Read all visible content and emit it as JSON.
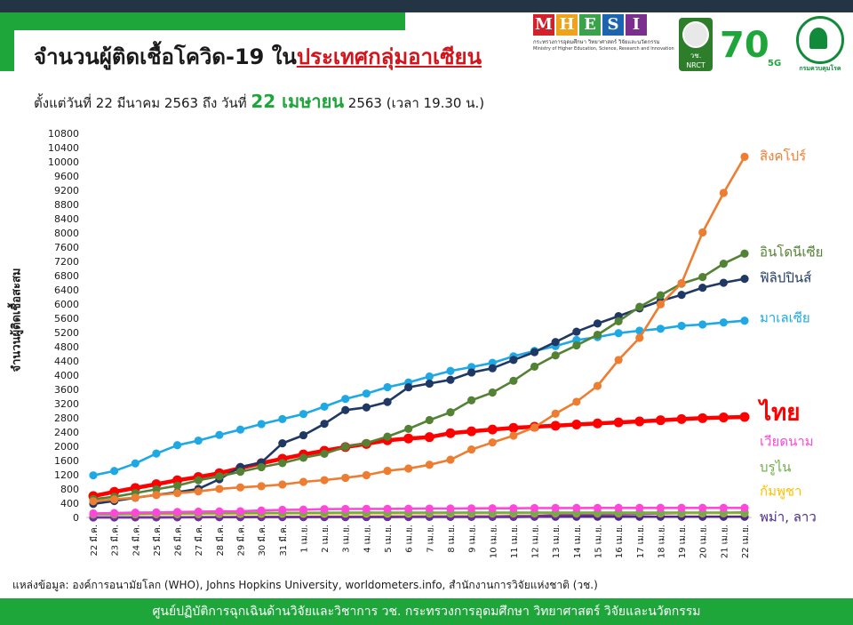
{
  "header": {
    "title_main": "จำนวนผู้ติดเชื้อโควิด-19 ใน",
    "title_highlight": "ประเทศกลุ่มอาเซียน",
    "subtitle_prefix": "ตั้งแต่วันที่ 22 มีนาคม 2563 ถึง วันที่",
    "subtitle_date": "22 เมษายน",
    "subtitle_suffix": "2563 (เวลา 19.30 น.)"
  },
  "logos": {
    "mhesi_letters": [
      "M",
      "H",
      "E",
      "S",
      "I"
    ],
    "mhesi_colors": [
      "#d4202a",
      "#f0a21b",
      "#3aa24a",
      "#1d64b0",
      "#7a2f8f"
    ],
    "mhesi_line1": "กระทรวงการอุดมศึกษา วิทยาศาสตร์ วิจัยและนวัตกรรม",
    "mhesi_line2": "Ministry of Higher Education, Science, Research and Innovation",
    "nrct_thai": "วช.",
    "nrct_en": "NRCT",
    "seventy": "70",
    "seventy_tag": "5G",
    "ddc_caption": "กรมควบคุมโรค"
  },
  "source": "แหล่งข้อมูล: องค์การอนามัยโลก (WHO), Johns Hopkins University, worldometers.info, สำนักงานการวิจัยแห่งชาติ (วช.)",
  "footer": "ศูนย์ปฏิบัติการฉุกเฉินด้านวิจัยและวิชาการ   วช.   กระทรวงการอุดมศึกษา วิทยาศาสตร์ วิจัยและนวัตกรรม",
  "chart_data": {
    "type": "line",
    "ylabel": "จำนวนผู้ติดเชื้อสะสม",
    "ylim": [
      0,
      10800
    ],
    "yticks": [
      0,
      400,
      800,
      1200,
      1600,
      2000,
      2400,
      2800,
      3200,
      3600,
      4000,
      4400,
      4800,
      5200,
      5600,
      6000,
      6400,
      6800,
      7200,
      7600,
      8000,
      8400,
      8800,
      9200,
      9600,
      10000,
      10400,
      10800
    ],
    "grid": false,
    "legend": "right end labels",
    "categories": [
      "22 มี.ค.",
      "23 มี.ค.",
      "24 มี.ค.",
      "25 มี.ค.",
      "26 มี.ค.",
      "27 มี.ค.",
      "28 มี.ค.",
      "29 มี.ค.",
      "30 มี.ค.",
      "31 มี.ค.",
      "1 เม.ย.",
      "2 เม.ย.",
      "3 เม.ย.",
      "4 เม.ย.",
      "5 เม.ย.",
      "6 เม.ย.",
      "7 เม.ย.",
      "8 เม.ย.",
      "9 เม.ย.",
      "10 เม.ย.",
      "11 เม.ย.",
      "12 เม.ย.",
      "13 เม.ย.",
      "14 เม.ย.",
      "15 เม.ย.",
      "16 เม.ย.",
      "17 เม.ย.",
      "18 เม.ย.",
      "19 เม.ย.",
      "20 เม.ย.",
      "21 เม.ย.",
      "22 เม.ย."
    ],
    "series": [
      {
        "name": "สิงคโปร์",
        "color": "#ed7d31",
        "bold": false,
        "values": [
          455,
          507,
          558,
          631,
          683,
          732,
          802,
          844,
          879,
          926,
          1000,
          1049,
          1114,
          1189,
          1309,
          1375,
          1481,
          1623,
          1910,
          2108,
          2299,
          2532,
          2918,
          3252,
          3699,
          4427,
          5050,
          5992,
          6588,
          8014,
          9125,
          10141
        ]
      },
      {
        "name": "อินโดนีเซีย",
        "color": "#548235",
        "bold": false,
        "values": [
          514,
          579,
          686,
          790,
          893,
          1046,
          1155,
          1285,
          1414,
          1528,
          1677,
          1790,
          1986,
          2092,
          2273,
          2491,
          2738,
          2956,
          3293,
          3512,
          3842,
          4241,
          4557,
          4839,
          5136,
          5516,
          5923,
          6248,
          6575,
          6760,
          7135,
          7418
        ]
      },
      {
        "name": "ฟิลิปปินส์",
        "color": "#203864",
        "bold": false,
        "values": [
          380,
          462,
          552,
          636,
          707,
          803,
          1075,
          1418,
          1546,
          2084,
          2311,
          2633,
          3018,
          3094,
          3246,
          3660,
          3764,
          3870,
          4076,
          4195,
          4428,
          4648,
          4932,
          5223,
          5453,
          5660,
          5878,
          6087,
          6259,
          6459,
          6599,
          6710
        ]
      },
      {
        "name": "มาเลเซีย",
        "color": "#1ea9e4",
        "bold": false,
        "values": [
          1183,
          1306,
          1518,
          1796,
          2031,
          2161,
          2320,
          2470,
          2626,
          2766,
          2908,
          3116,
          3333,
          3483,
          3662,
          3793,
          3963,
          4119,
          4228,
          4346,
          4530,
          4683,
          4817,
          4987,
          5072,
          5182,
          5251,
          5305,
          5389,
          5425,
          5482,
          5532
        ]
      },
      {
        "name": "ไทย",
        "color": "#ff0000",
        "bold": true,
        "values": [
          599,
          721,
          827,
          934,
          1045,
          1136,
          1245,
          1388,
          1524,
          1651,
          1771,
          1875,
          1978,
          2067,
          2169,
          2220,
          2258,
          2369,
          2423,
          2473,
          2518,
          2551,
          2579,
          2613,
          2643,
          2672,
          2700,
          2733,
          2765,
          2792,
          2811,
          2826
        ]
      },
      {
        "name": "เวียดนาม",
        "color": "#ff47d9",
        "bold": false,
        "values": [
          113,
          123,
          134,
          141,
          153,
          163,
          169,
          174,
          194,
          212,
          218,
          233,
          237,
          240,
          241,
          245,
          249,
          251,
          255,
          257,
          258,
          262,
          265,
          265,
          267,
          268,
          268,
          268,
          268,
          268,
          268,
          268
        ]
      },
      {
        "name": "บรูไน",
        "color": "#70ad47",
        "bold": false,
        "values": [
          88,
          91,
          104,
          109,
          114,
          115,
          120,
          126,
          127,
          129,
          131,
          133,
          134,
          135,
          135,
          135,
          135,
          135,
          135,
          136,
          136,
          136,
          136,
          136,
          136,
          136,
          136,
          138,
          138,
          138,
          138,
          138
        ]
      },
      {
        "name": "กัมพูชา",
        "color": "#ffc000",
        "bold": false,
        "values": [
          84,
          87,
          91,
          96,
          96,
          99,
          103,
          103,
          107,
          109,
          109,
          110,
          114,
          114,
          114,
          114,
          115,
          117,
          117,
          119,
          119,
          120,
          122,
          122,
          122,
          122,
          122,
          122,
          122,
          122,
          122,
          122
        ]
      },
      {
        "name": "พม่า",
        "color": "#7030a0",
        "bold": false,
        "values": [
          0,
          0,
          3,
          3,
          5,
          8,
          8,
          10,
          14,
          15,
          16,
          20,
          21,
          21,
          22,
          22,
          27,
          28,
          28,
          28,
          38,
          41,
          62,
          74,
          85,
          88,
          98,
          111,
          119,
          121,
          127,
          139
        ]
      },
      {
        "name": "ลาว",
        "color": "#4b2a8a",
        "bold": false,
        "values": [
          2,
          3,
          3,
          3,
          6,
          6,
          8,
          8,
          9,
          10,
          10,
          10,
          10,
          11,
          11,
          12,
          15,
          16,
          16,
          16,
          16,
          19,
          19,
          19,
          19,
          19,
          19,
          19,
          19,
          19,
          19,
          19
        ]
      }
    ],
    "end_labels": [
      {
        "text": "สิงคโปร์",
        "color": "#ed7d31"
      },
      {
        "text": "อินโดนีเซีย",
        "color": "#548235"
      },
      {
        "text": "ฟิลิปปินส์",
        "color": "#203864"
      },
      {
        "text": "มาเลเซีย",
        "color": "#1ea9e4"
      },
      {
        "text": "ไทย",
        "color": "#ff0000"
      },
      {
        "text": "เวียดนาม",
        "color": "#ff47d9"
      },
      {
        "text": "บรูไน",
        "color": "#70ad47"
      },
      {
        "text": "กัมพูชา",
        "color": "#ffc000"
      },
      {
        "text": "พม่า, ลาว",
        "color": "#4b2a8a"
      }
    ]
  }
}
